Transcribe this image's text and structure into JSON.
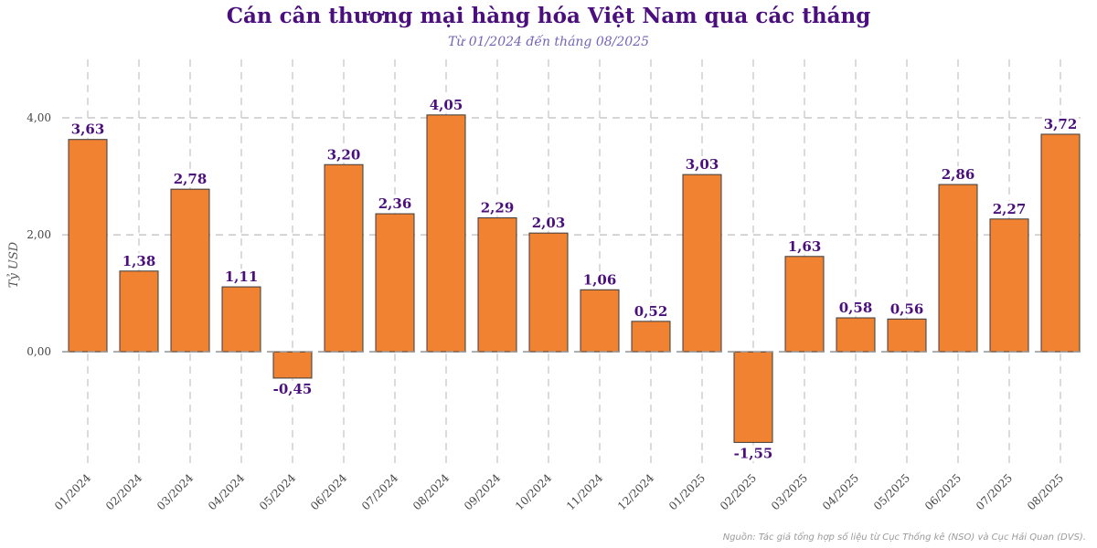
{
  "chart_data": {
    "type": "bar",
    "title": "Cán cân thương mại hàng hóa Việt Nam qua các tháng",
    "subtitle": "Từ 01/2024 đến tháng 08/2025",
    "ylabel": "Tỷ USD",
    "xlabel": "",
    "source": "Nguồn: Tác giả tổng hợp số liệu từ Cục Thống kê (NSO) và Cục Hải Quan (DVS).",
    "categories": [
      "01/2024",
      "02/2024",
      "03/2024",
      "04/2024",
      "05/2024",
      "06/2024",
      "07/2024",
      "08/2024",
      "09/2024",
      "10/2024",
      "11/2024",
      "12/2024",
      "01/2025",
      "02/2025",
      "03/2025",
      "04/2025",
      "05/2025",
      "06/2025",
      "07/2025",
      "08/2025"
    ],
    "values": [
      3.63,
      1.38,
      2.78,
      1.11,
      -0.45,
      3.2,
      2.36,
      4.05,
      2.29,
      2.03,
      1.06,
      0.52,
      3.03,
      -1.55,
      1.63,
      0.58,
      0.56,
      2.86,
      2.27,
      3.72
    ],
    "value_labels": [
      "3,63",
      "1,38",
      "2,78",
      "1,11",
      "-0,45",
      "3,20",
      "2,36",
      "4,05",
      "2,29",
      "2,03",
      "1,06",
      "0,52",
      "3,03",
      "-1,55",
      "1,63",
      "0,58",
      "0,56",
      "2,86",
      "2,27",
      "3,72"
    ],
    "yticks": [
      0,
      2,
      4
    ],
    "ytick_labels": [
      "0,00",
      "2,00",
      "4,00"
    ],
    "ylim": [
      -1.95,
      5.0
    ],
    "grid": true,
    "bar_color": "#f08232",
    "label_color": "#4b0f7d"
  }
}
